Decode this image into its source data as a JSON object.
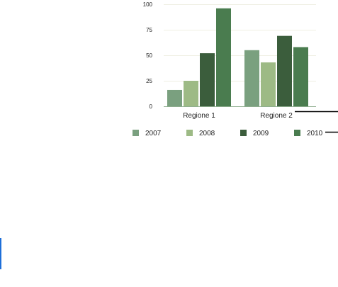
{
  "chart_data": {
    "type": "bar",
    "categories": [
      "Regione 1",
      "Regione 2"
    ],
    "series": [
      {
        "name": "2007",
        "values": [
          16,
          55
        ],
        "color": "#7aa07f"
      },
      {
        "name": "2008",
        "values": [
          25,
          43
        ],
        "color": "#9dba85"
      },
      {
        "name": "2009",
        "values": [
          52,
          69
        ],
        "color": "#3b5d3c"
      },
      {
        "name": "2010",
        "values": [
          96,
          58
        ],
        "color": "#4a7c4f"
      }
    ],
    "yticks": [
      "0",
      "25",
      "50",
      "75",
      "100"
    ],
    "ylim": [
      0,
      100
    ],
    "title": "",
    "xlabel": "",
    "ylabel": "",
    "grid": true,
    "legend": "bottom"
  }
}
